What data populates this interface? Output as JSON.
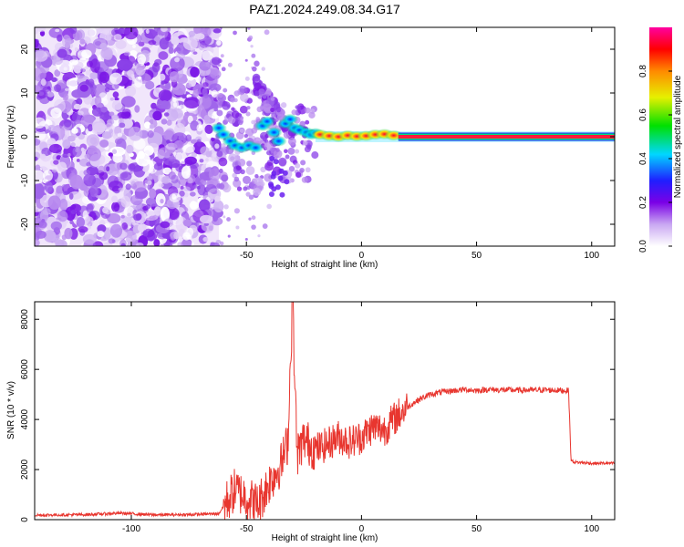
{
  "title": "PAZ1.2024.249.08.34.G17",
  "colorbar": {
    "label": "Normalized spectral amplitude",
    "ticks": [
      "0.0",
      "0.2",
      "0.4",
      "0.6",
      "0.8"
    ],
    "tick_values": [
      0.0,
      0.2,
      0.4,
      0.6,
      0.8
    ],
    "range": [
      0,
      1
    ]
  },
  "chart_data": [
    {
      "type": "heatmap",
      "title": "PAZ1.2024.249.08.34.G17",
      "xlabel": "Height of straight line (km)",
      "ylabel": "Frequency (Hz)",
      "xlim": [
        -142,
        110
      ],
      "ylim": [
        -25,
        25
      ],
      "xticks": [
        -100,
        -50,
        0,
        50,
        100
      ],
      "xtick_labels": [
        "-100",
        "-50",
        "0",
        "50",
        "100"
      ],
      "yticks": [
        -20,
        -10,
        0,
        10,
        20
      ],
      "ytick_labels": [
        "-20",
        "-10",
        "0",
        "10",
        "20"
      ],
      "colormap": "rainbow (white→purple→blue→cyan→green→yellow→red→magenta)",
      "features": [
        {
          "name": "noise",
          "x_range": [
            -142,
            -62
          ],
          "freq_range": [
            -25,
            25
          ],
          "amplitude_range": [
            0.0,
            0.2
          ]
        },
        {
          "name": "signal-onset",
          "x_range": [
            -62,
            -20
          ],
          "freq_range": [
            -10,
            13
          ],
          "amplitude_range": [
            0.2,
            0.6
          ]
        },
        {
          "name": "carrier-line",
          "x_range": [
            -20,
            110
          ],
          "freq": 0,
          "amplitude_range": [
            0.6,
            1.0
          ]
        }
      ]
    },
    {
      "type": "line",
      "xlabel": "Height of straight line (km)",
      "ylabel": "SNR (10 * v/v)",
      "xlim": [
        -142,
        110
      ],
      "ylim": [
        0,
        8700
      ],
      "xticks": [
        -100,
        -50,
        0,
        50,
        100
      ],
      "xtick_labels": [
        "-100",
        "-50",
        "0",
        "50",
        "100"
      ],
      "yticks": [
        0,
        2000,
        4000,
        6000,
        8000
      ],
      "ytick_labels": [
        "0",
        "2000",
        "4000",
        "6000",
        "8000"
      ],
      "color": "#e8362f",
      "series": [
        {
          "x": [
            -142,
            -120,
            -105,
            -90,
            -75,
            -62,
            -58,
            -55,
            -50,
            -45,
            -40,
            -35,
            -32,
            -30,
            -28,
            -25,
            -20,
            -15,
            -10,
            -5,
            0,
            5,
            10,
            15,
            20,
            25,
            30,
            35,
            40,
            45,
            50,
            55,
            60,
            70,
            80,
            90,
            91,
            92,
            100,
            110
          ],
          "values": [
            180,
            200,
            260,
            190,
            200,
            240,
            800,
            1200,
            900,
            600,
            1500,
            2200,
            3100,
            8700,
            2600,
            3200,
            2800,
            3000,
            3300,
            3100,
            3300,
            3700,
            3600,
            4100,
            4500,
            4800,
            5000,
            5100,
            5150,
            5200,
            5150,
            5200,
            5180,
            5170,
            5180,
            5150,
            2400,
            2300,
            2250,
            2250
          ]
        }
      ]
    }
  ]
}
